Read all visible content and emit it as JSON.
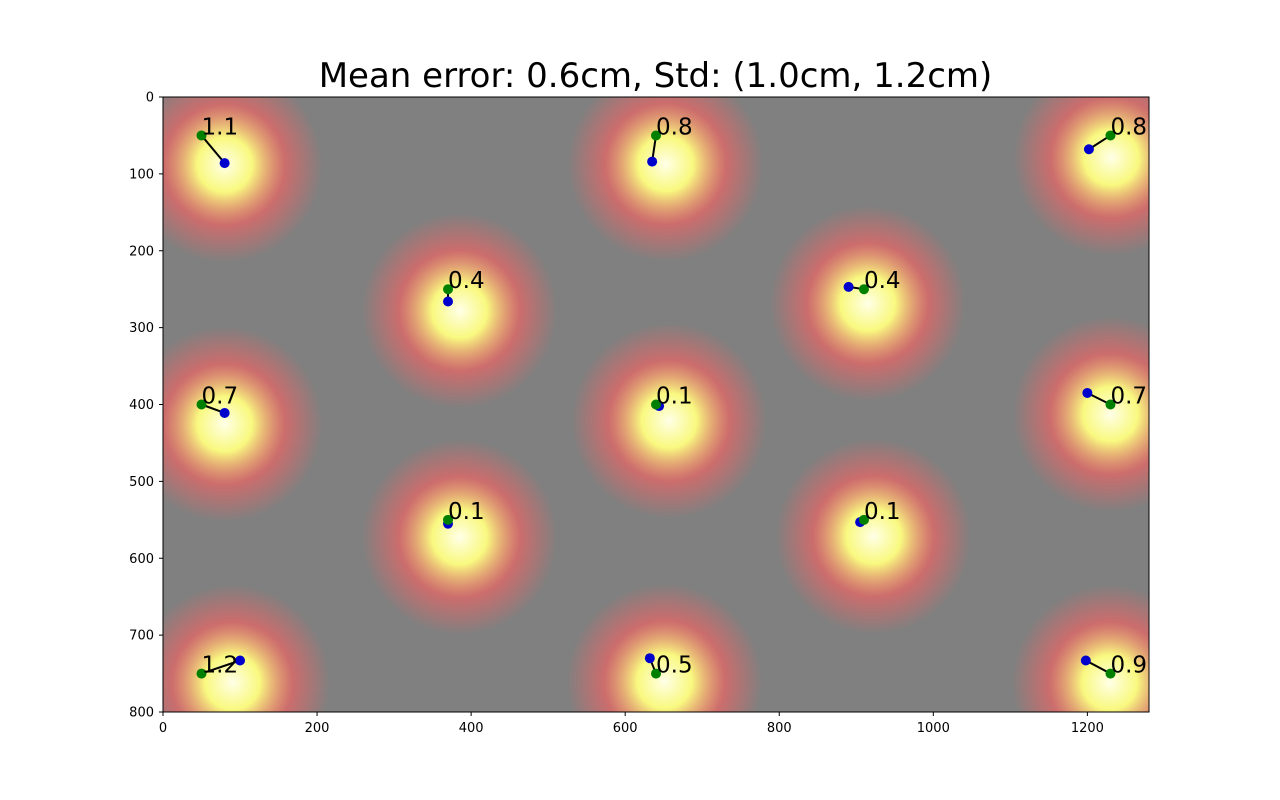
{
  "chart_data": {
    "type": "scatter",
    "title": "Mean error: 0.6cm, Std: (1.0cm, 1.2cm)",
    "xlim": [
      0,
      1280
    ],
    "ylim": [
      800,
      0
    ],
    "y_inverted": true,
    "xticks": [
      0,
      200,
      400,
      600,
      800,
      1000,
      1200
    ],
    "yticks": [
      0,
      100,
      200,
      300,
      400,
      500,
      600,
      700,
      800
    ],
    "grid": false,
    "colors": {
      "target": "#008000",
      "estimate": "#0000cc",
      "line": "#000000",
      "heat_base": "#808080",
      "heat_mid": "#ff6060",
      "heat_peak": "#ffff80",
      "heat_center": "#ffffe8"
    },
    "points": [
      {
        "target": [
          50,
          50
        ],
        "estimate": [
          80,
          86
        ],
        "error": "1.1"
      },
      {
        "target": [
          640,
          50
        ],
        "estimate": [
          635,
          84
        ],
        "error": "0.8"
      },
      {
        "target": [
          1230,
          50
        ],
        "estimate": [
          1202,
          68
        ],
        "error": "0.8"
      },
      {
        "target": [
          370,
          250
        ],
        "estimate": [
          370,
          266
        ],
        "error": "0.4"
      },
      {
        "target": [
          910,
          250
        ],
        "estimate": [
          890,
          247
        ],
        "error": "0.4"
      },
      {
        "target": [
          50,
          400
        ],
        "estimate": [
          80,
          411
        ],
        "error": "0.7"
      },
      {
        "target": [
          640,
          400
        ],
        "estimate": [
          644,
          402
        ],
        "error": "0.1"
      },
      {
        "target": [
          1230,
          400
        ],
        "estimate": [
          1200,
          385
        ],
        "error": "0.7"
      },
      {
        "target": [
          370,
          550
        ],
        "estimate": [
          370,
          555
        ],
        "error": "0.1"
      },
      {
        "target": [
          910,
          550
        ],
        "estimate": [
          905,
          553
        ],
        "error": "0.1"
      },
      {
        "target": [
          50,
          750
        ],
        "estimate": [
          100,
          733
        ],
        "error": "1.2"
      },
      {
        "target": [
          640,
          750
        ],
        "estimate": [
          632,
          730
        ],
        "error": "0.5"
      },
      {
        "target": [
          1230,
          750
        ],
        "estimate": [
          1198,
          733
        ],
        "error": "0.9"
      }
    ]
  }
}
